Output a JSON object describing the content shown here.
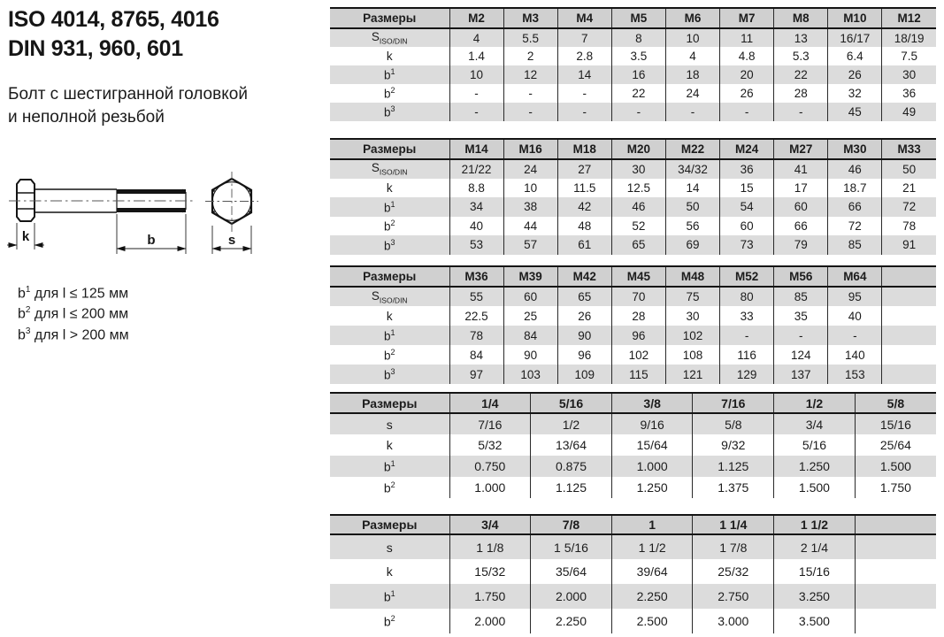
{
  "header": {
    "title_iso": "ISO 4014, 8765, 4016",
    "title_din": "DIN 931, 960, 601",
    "subtitle_line1": "Болт с шестигранной головкой",
    "subtitle_line2": "и неполной резьбой"
  },
  "diagram": {
    "labels": {
      "k": "k",
      "b": "b",
      "s": "s"
    }
  },
  "footnotes": [
    {
      "base": "b",
      "sup": "1",
      "text": "для l ≤ 125 мм"
    },
    {
      "base": "b",
      "sup": "2",
      "text": "для l ≤ 200 мм"
    },
    {
      "base": "b",
      "sup": "3",
      "text": "для l > 200 мм"
    }
  ],
  "tables": [
    {
      "size_label": "Размеры",
      "columns": [
        "M2",
        "M3",
        "M4",
        "M5",
        "M6",
        "M7",
        "M8",
        "M10",
        "M12"
      ],
      "trailing_empty": false,
      "rows": [
        {
          "label": {
            "base": "S",
            "sub": "ISO/DIN"
          },
          "values": [
            "4",
            "5.5",
            "7",
            "8",
            "10",
            "11",
            "13",
            "16/17",
            "18/19"
          ]
        },
        {
          "label": {
            "base": "k"
          },
          "values": [
            "1.4",
            "2",
            "2.8",
            "3.5",
            "4",
            "4.8",
            "5.3",
            "6.4",
            "7.5"
          ]
        },
        {
          "label": {
            "base": "b",
            "sup": "1"
          },
          "values": [
            "10",
            "12",
            "14",
            "16",
            "18",
            "20",
            "22",
            "26",
            "30"
          ]
        },
        {
          "label": {
            "base": "b",
            "sup": "2"
          },
          "values": [
            "-",
            "-",
            "-",
            "22",
            "24",
            "26",
            "28",
            "32",
            "36"
          ]
        },
        {
          "label": {
            "base": "b",
            "sup": "3"
          },
          "values": [
            "-",
            "-",
            "-",
            "-",
            "-",
            "-",
            "-",
            "45",
            "49"
          ]
        }
      ]
    },
    {
      "size_label": "Размеры",
      "columns": [
        "M14",
        "M16",
        "M18",
        "M20",
        "M22",
        "M24",
        "M27",
        "M30",
        "M33"
      ],
      "trailing_empty": false,
      "rows": [
        {
          "label": {
            "base": "S",
            "sub": "ISO/DIN"
          },
          "values": [
            "21/22",
            "24",
            "27",
            "30",
            "34/32",
            "36",
            "41",
            "46",
            "50"
          ]
        },
        {
          "label": {
            "base": "k"
          },
          "values": [
            "8.8",
            "10",
            "11.5",
            "12.5",
            "14",
            "15",
            "17",
            "18.7",
            "21"
          ]
        },
        {
          "label": {
            "base": "b",
            "sup": "1"
          },
          "values": [
            "34",
            "38",
            "42",
            "46",
            "50",
            "54",
            "60",
            "66",
            "72"
          ]
        },
        {
          "label": {
            "base": "b",
            "sup": "2"
          },
          "values": [
            "40",
            "44",
            "48",
            "52",
            "56",
            "60",
            "66",
            "72",
            "78"
          ]
        },
        {
          "label": {
            "base": "b",
            "sup": "3"
          },
          "values": [
            "53",
            "57",
            "61",
            "65",
            "69",
            "73",
            "79",
            "85",
            "91"
          ]
        }
      ]
    },
    {
      "size_label": "Размеры",
      "columns": [
        "M36",
        "M39",
        "M42",
        "M45",
        "M48",
        "M52",
        "M56",
        "M64"
      ],
      "trailing_empty": true,
      "rows": [
        {
          "label": {
            "base": "S",
            "sub": "ISO/DIN"
          },
          "values": [
            "55",
            "60",
            "65",
            "70",
            "75",
            "80",
            "85",
            "95"
          ]
        },
        {
          "label": {
            "base": "k"
          },
          "values": [
            "22.5",
            "25",
            "26",
            "28",
            "30",
            "33",
            "35",
            "40"
          ]
        },
        {
          "label": {
            "base": "b",
            "sup": "1"
          },
          "values": [
            "78",
            "84",
            "90",
            "96",
            "102",
            "-",
            "-",
            "-"
          ]
        },
        {
          "label": {
            "base": "b",
            "sup": "2"
          },
          "values": [
            "84",
            "90",
            "96",
            "102",
            "108",
            "116",
            "124",
            "140"
          ]
        },
        {
          "label": {
            "base": "b",
            "sup": "3"
          },
          "values": [
            "97",
            "103",
            "109",
            "115",
            "121",
            "129",
            "137",
            "153"
          ]
        }
      ]
    },
    {
      "size_label": "Размеры",
      "columns": [
        "1/4",
        "5/16",
        "3/8",
        "7/16",
        "1/2",
        "5/8"
      ],
      "trailing_empty": false,
      "rows": [
        {
          "label": {
            "base": "s"
          },
          "values": [
            "7/16",
            "1/2",
            "9/16",
            "5/8",
            "3/4",
            "15/16"
          ]
        },
        {
          "label": {
            "base": "k"
          },
          "values": [
            "5/32",
            "13/64",
            "15/64",
            "9/32",
            "5/16",
            "25/64"
          ]
        },
        {
          "label": {
            "base": "b",
            "sup": "1"
          },
          "values": [
            "0.750",
            "0.875",
            "1.000",
            "1.125",
            "1.250",
            "1.500"
          ]
        },
        {
          "label": {
            "base": "b",
            "sup": "2"
          },
          "values": [
            "1.000",
            "1.125",
            "1.250",
            "1.375",
            "1.500",
            "1.750"
          ]
        }
      ]
    },
    {
      "size_label": "Размеры",
      "columns": [
        "3/4",
        "7/8",
        "1",
        "1 1/4",
        "1 1/2"
      ],
      "trailing_empty": true,
      "rows": [
        {
          "label": {
            "base": "s"
          },
          "values": [
            "1 1/8",
            "1 5/16",
            "1 1/2",
            "1 7/8",
            "2 1/4"
          ]
        },
        {
          "label": {
            "base": "k"
          },
          "values": [
            "15/32",
            "35/64",
            "39/64",
            "25/32",
            "15/16"
          ]
        },
        {
          "label": {
            "base": "b",
            "sup": "1"
          },
          "values": [
            "1.750",
            "2.000",
            "2.250",
            "2.750",
            "3.250"
          ]
        },
        {
          "label": {
            "base": "b",
            "sup": "2"
          },
          "values": [
            "2.000",
            "2.250",
            "2.500",
            "3.000",
            "3.500"
          ]
        }
      ]
    }
  ]
}
